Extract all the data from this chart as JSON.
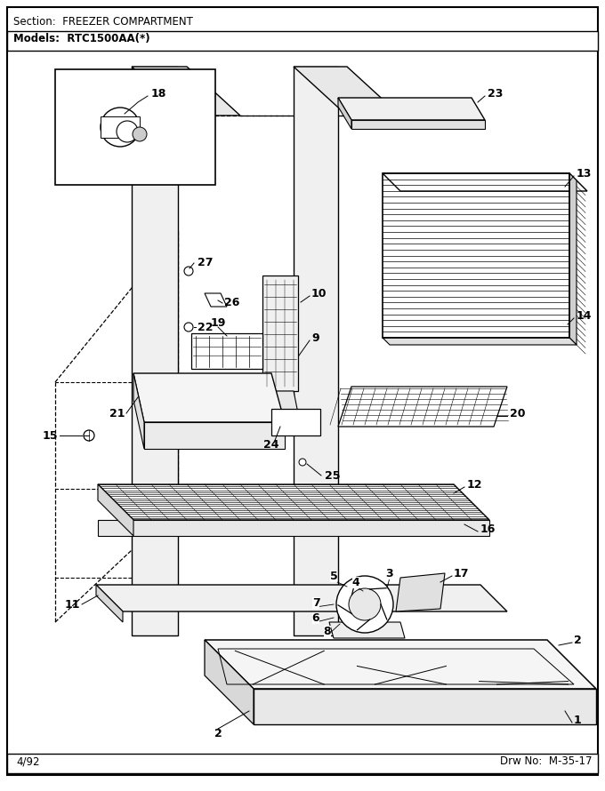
{
  "section_label": "Section:  FREEZER COMPARTMENT",
  "models_label": "Models:  RTC1500AA(*)",
  "footer_left": "4/92",
  "footer_right": "Drw No:  M-35-17",
  "bg_color": "#ffffff"
}
